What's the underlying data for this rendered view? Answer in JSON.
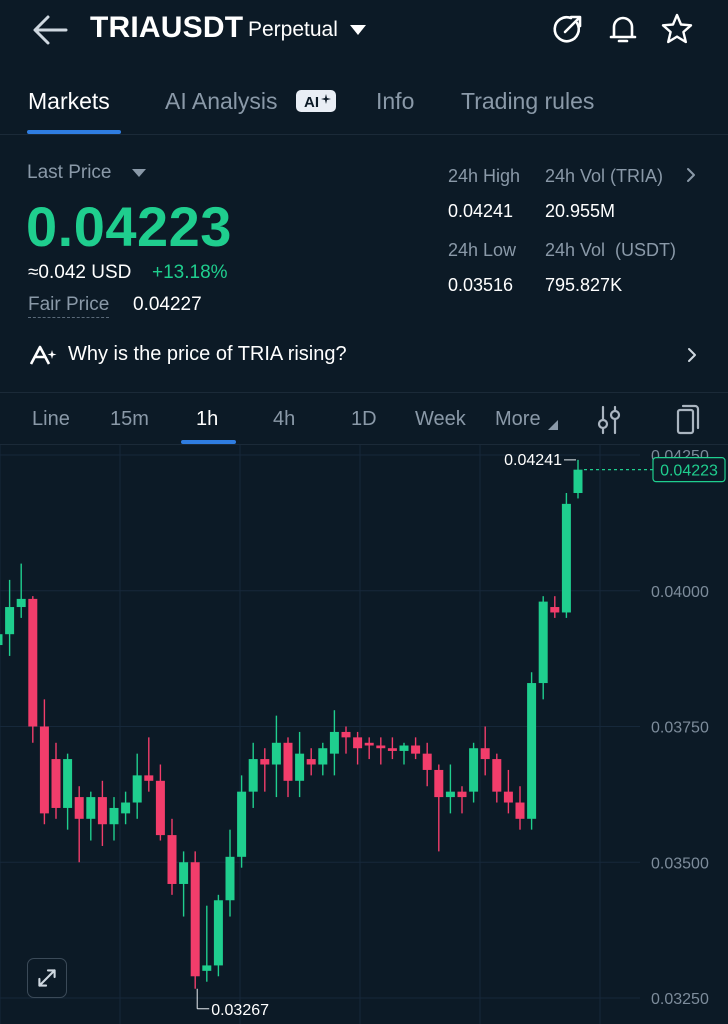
{
  "header": {
    "symbol": "TRIAUSDT",
    "contract_type": "Perpetual",
    "icons": [
      "back-arrow-icon",
      "share-icon",
      "bell-icon",
      "star-icon"
    ]
  },
  "tabs": [
    {
      "label": "Markets",
      "active": true
    },
    {
      "label": "AI Analysis",
      "badge": "AI",
      "active": false
    },
    {
      "label": "Info",
      "active": false
    },
    {
      "label": "Trading rules",
      "active": false
    }
  ],
  "price": {
    "last_price_label": "Last Price",
    "last_price": "0.04223",
    "usd_equiv": "≈0.042 USD",
    "change_pct": "+13.18%",
    "fair_price_label": "Fair Price",
    "fair_price": "0.04227",
    "up_color": "#1fce8e",
    "down_color": "#f23d6b"
  },
  "stats": {
    "high_label": "24h High",
    "high": "0.04241",
    "low_label": "24h Low",
    "low": "0.03516",
    "vol_base_label": "24h Vol (TRIA)",
    "vol_base": "20.955M",
    "vol_quote_label": "24h Vol  (USDT)",
    "vol_quote": "795.827K"
  },
  "insight": {
    "text": "Why is the price of TRIA rising?"
  },
  "timeframes": [
    {
      "label": "Line",
      "active": false
    },
    {
      "label": "15m",
      "active": false
    },
    {
      "label": "1h",
      "active": true
    },
    {
      "label": "4h",
      "active": false
    },
    {
      "label": "1D",
      "active": false
    },
    {
      "label": "Week",
      "active": false
    },
    {
      "label": "More",
      "active": false
    }
  ],
  "chart_data": {
    "type": "candlestick",
    "y_ticks": [
      "0.04250",
      "0.04000",
      "0.03750",
      "0.03500",
      "0.03250"
    ],
    "ylim": [
      0.0325,
      0.0425
    ],
    "high_marker": "0.04241",
    "low_marker": "0.03267",
    "current_price_tag": "0.04223",
    "grid": true,
    "candles": [
      {
        "o": 0.039,
        "h": 0.0395,
        "l": 0.0372,
        "c": 0.0392
      },
      {
        "o": 0.0392,
        "h": 0.0402,
        "l": 0.0388,
        "c": 0.0397
      },
      {
        "o": 0.0397,
        "h": 0.0405,
        "l": 0.0395,
        "c": 0.03985
      },
      {
        "o": 0.03985,
        "h": 0.0399,
        "l": 0.0372,
        "c": 0.0375
      },
      {
        "o": 0.0375,
        "h": 0.038,
        "l": 0.0357,
        "c": 0.0359
      },
      {
        "o": 0.0369,
        "h": 0.0372,
        "l": 0.0358,
        "c": 0.036
      },
      {
        "o": 0.036,
        "h": 0.037,
        "l": 0.0356,
        "c": 0.0369
      },
      {
        "o": 0.0362,
        "h": 0.0364,
        "l": 0.035,
        "c": 0.0358
      },
      {
        "o": 0.0358,
        "h": 0.0363,
        "l": 0.0354,
        "c": 0.0362
      },
      {
        "o": 0.0362,
        "h": 0.0365,
        "l": 0.0353,
        "c": 0.0357
      },
      {
        "o": 0.0357,
        "h": 0.0362,
        "l": 0.0354,
        "c": 0.036
      },
      {
        "o": 0.0359,
        "h": 0.0363,
        "l": 0.0357,
        "c": 0.0361
      },
      {
        "o": 0.0361,
        "h": 0.037,
        "l": 0.0358,
        "c": 0.0366
      },
      {
        "o": 0.0366,
        "h": 0.0373,
        "l": 0.0363,
        "c": 0.0365
      },
      {
        "o": 0.0365,
        "h": 0.0368,
        "l": 0.0354,
        "c": 0.0355
      },
      {
        "o": 0.0355,
        "h": 0.0358,
        "l": 0.0344,
        "c": 0.0346
      },
      {
        "o": 0.0346,
        "h": 0.0352,
        "l": 0.034,
        "c": 0.035
      },
      {
        "o": 0.035,
        "h": 0.0352,
        "l": 0.03267,
        "c": 0.0329
      },
      {
        "o": 0.033,
        "h": 0.0342,
        "l": 0.0328,
        "c": 0.0331
      },
      {
        "o": 0.0331,
        "h": 0.0344,
        "l": 0.0329,
        "c": 0.0343
      },
      {
        "o": 0.0343,
        "h": 0.0356,
        "l": 0.034,
        "c": 0.0351
      },
      {
        "o": 0.0351,
        "h": 0.0366,
        "l": 0.0349,
        "c": 0.0363
      },
      {
        "o": 0.0363,
        "h": 0.0372,
        "l": 0.036,
        "c": 0.0369
      },
      {
        "o": 0.0369,
        "h": 0.0371,
        "l": 0.0363,
        "c": 0.0368
      },
      {
        "o": 0.0368,
        "h": 0.0377,
        "l": 0.0362,
        "c": 0.0372
      },
      {
        "o": 0.0372,
        "h": 0.0373,
        "l": 0.0362,
        "c": 0.0365
      },
      {
        "o": 0.0365,
        "h": 0.0374,
        "l": 0.0362,
        "c": 0.037
      },
      {
        "o": 0.0369,
        "h": 0.0371,
        "l": 0.0366,
        "c": 0.0368
      },
      {
        "o": 0.0368,
        "h": 0.0372,
        "l": 0.0366,
        "c": 0.0371
      },
      {
        "o": 0.037,
        "h": 0.0378,
        "l": 0.0366,
        "c": 0.0374
      },
      {
        "o": 0.0374,
        "h": 0.0375,
        "l": 0.037,
        "c": 0.0373
      },
      {
        "o": 0.0373,
        "h": 0.0374,
        "l": 0.0368,
        "c": 0.0371
      },
      {
        "o": 0.0372,
        "h": 0.0373,
        "l": 0.0369,
        "c": 0.03715
      },
      {
        "o": 0.03715,
        "h": 0.0373,
        "l": 0.0368,
        "c": 0.0371
      },
      {
        "o": 0.0371,
        "h": 0.0373,
        "l": 0.0369,
        "c": 0.03705
      },
      {
        "o": 0.03705,
        "h": 0.0372,
        "l": 0.0368,
        "c": 0.03715
      },
      {
        "o": 0.03715,
        "h": 0.0373,
        "l": 0.0369,
        "c": 0.037
      },
      {
        "o": 0.037,
        "h": 0.0372,
        "l": 0.0364,
        "c": 0.0367
      },
      {
        "o": 0.0367,
        "h": 0.0368,
        "l": 0.0352,
        "c": 0.0362
      },
      {
        "o": 0.0362,
        "h": 0.0368,
        "l": 0.0359,
        "c": 0.0363
      },
      {
        "o": 0.0363,
        "h": 0.0364,
        "l": 0.0359,
        "c": 0.0362
      },
      {
        "o": 0.0363,
        "h": 0.0372,
        "l": 0.0361,
        "c": 0.0371
      },
      {
        "o": 0.0371,
        "h": 0.0375,
        "l": 0.0366,
        "c": 0.0369
      },
      {
        "o": 0.0369,
        "h": 0.037,
        "l": 0.0361,
        "c": 0.0363
      },
      {
        "o": 0.0363,
        "h": 0.0367,
        "l": 0.0359,
        "c": 0.0361
      },
      {
        "o": 0.0361,
        "h": 0.0364,
        "l": 0.0356,
        "c": 0.0358
      },
      {
        "o": 0.0358,
        "h": 0.0385,
        "l": 0.0356,
        "c": 0.0383
      },
      {
        "o": 0.0383,
        "h": 0.0399,
        "l": 0.038,
        "c": 0.0398
      },
      {
        "o": 0.0397,
        "h": 0.0399,
        "l": 0.0395,
        "c": 0.0396
      },
      {
        "o": 0.0396,
        "h": 0.0418,
        "l": 0.0395,
        "c": 0.0416
      },
      {
        "o": 0.0418,
        "h": 0.04241,
        "l": 0.0417,
        "c": 0.04223
      }
    ]
  }
}
